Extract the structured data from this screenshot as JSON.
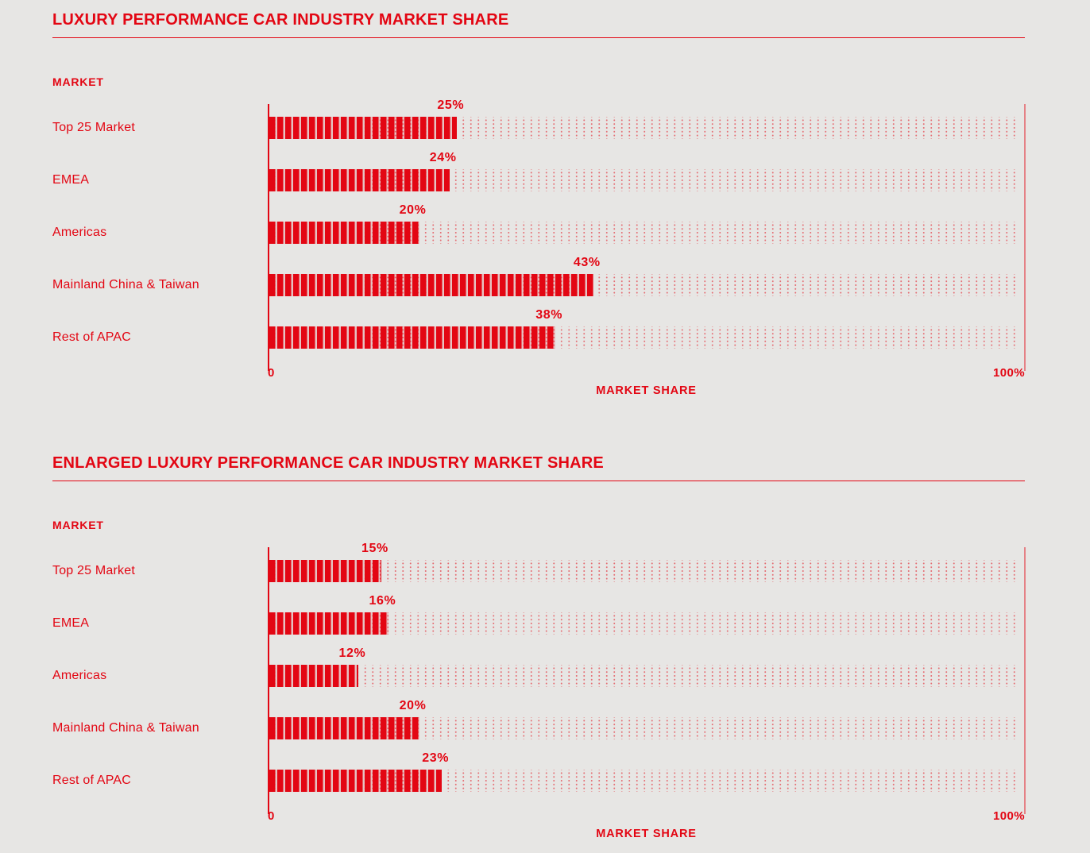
{
  "colors": {
    "accent_red": "#e30613",
    "gridline_light_red": "rgba(227,6,19,0.45)",
    "background": "#e7e6e4"
  },
  "charts": [
    {
      "title": "LUXURY PERFORMANCE CAR INDUSTRY MARKET SHARE",
      "column_header": "MARKET",
      "x_axis": {
        "min_label": "0",
        "max_label": "100%",
        "title": "MARKET SHARE",
        "min": 0,
        "max": 100
      },
      "bars": [
        {
          "label": "Top 25 Market",
          "value": 25,
          "value_label": "25%"
        },
        {
          "label": "EMEA",
          "value": 24,
          "value_label": "24%"
        },
        {
          "label": "Americas",
          "value": 20,
          "value_label": "20%"
        },
        {
          "label": "Mainland China & Taiwan",
          "value": 43,
          "value_label": "43%"
        },
        {
          "label": "Rest of APAC",
          "value": 38,
          "value_label": "38%"
        }
      ]
    },
    {
      "title": "ENLARGED LUXURY PERFORMANCE CAR INDUSTRY MARKET SHARE",
      "column_header": "MARKET",
      "x_axis": {
        "min_label": "0",
        "max_label": "100%",
        "title": "MARKET SHARE",
        "min": 0,
        "max": 100
      },
      "bars": [
        {
          "label": "Top 25 Market",
          "value": 15,
          "value_label": "15%"
        },
        {
          "label": "EMEA",
          "value": 16,
          "value_label": "16%"
        },
        {
          "label": "Americas",
          "value": 12,
          "value_label": "12%"
        },
        {
          "label": "Mainland China & Taiwan",
          "value": 20,
          "value_label": "20%"
        },
        {
          "label": "Rest of APAC",
          "value": 23,
          "value_label": "23%"
        }
      ]
    }
  ],
  "chart_data": [
    {
      "type": "bar",
      "orientation": "horizontal",
      "title": "LUXURY PERFORMANCE CAR INDUSTRY MARKET SHARE",
      "categories": [
        "Top 25 Market",
        "EMEA",
        "Americas",
        "Mainland China & Taiwan",
        "Rest of APAC"
      ],
      "values": [
        25,
        24,
        20,
        43,
        38
      ],
      "data_labels": [
        "25%",
        "24%",
        "20%",
        "43%",
        "38%"
      ],
      "xlabel": "MARKET SHARE",
      "ylabel": "MARKET",
      "xlim": [
        0,
        100
      ],
      "x_tick_labels": [
        "0",
        "100%"
      ],
      "grid": false,
      "legend": false,
      "bar_style": "striped-red-segments-on-dotted-track"
    },
    {
      "type": "bar",
      "orientation": "horizontal",
      "title": "ENLARGED LUXURY PERFORMANCE CAR INDUSTRY MARKET SHARE",
      "categories": [
        "Top 25 Market",
        "EMEA",
        "Americas",
        "Mainland China & Taiwan",
        "Rest of APAC"
      ],
      "values": [
        15,
        16,
        12,
        20,
        23
      ],
      "data_labels": [
        "15%",
        "16%",
        "12%",
        "20%",
        "23%"
      ],
      "xlabel": "MARKET SHARE",
      "ylabel": "MARKET",
      "xlim": [
        0,
        100
      ],
      "x_tick_labels": [
        "0",
        "100%"
      ],
      "grid": false,
      "legend": false,
      "bar_style": "striped-red-segments-on-dotted-track"
    }
  ]
}
